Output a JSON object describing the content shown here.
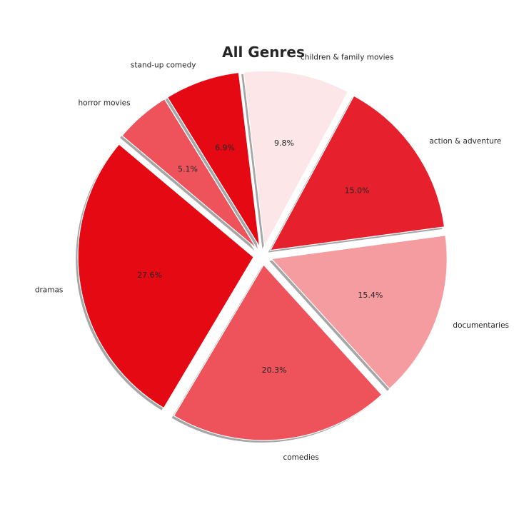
{
  "chart_data": {
    "type": "pie",
    "title": "All Genres",
    "start_angle_deg": 140,
    "direction": "counterclockwise",
    "shadow": true,
    "exploded": true,
    "slices": [
      {
        "label": "dramas",
        "value": 27.6,
        "pct_label": "27.6%",
        "color": "#E50914"
      },
      {
        "label": "comedies",
        "value": 20.3,
        "pct_label": "20.3%",
        "color": "#EE525B"
      },
      {
        "label": "documentaries",
        "value": 15.4,
        "pct_label": "15.4%",
        "color": "#F59CA1"
      },
      {
        "label": "action & adventure",
        "value": 15.0,
        "pct_label": "15.0%",
        "color": "#E6202C"
      },
      {
        "label": "children & family movies",
        "value": 9.8,
        "pct_label": "9.8%",
        "color": "#FCE6E7"
      },
      {
        "label": "stand-up comedy",
        "value": 6.9,
        "pct_label": "6.9%",
        "color": "#E50914"
      },
      {
        "label": "horror movies",
        "value": 5.1,
        "pct_label": "5.1%",
        "color": "#EE525B"
      }
    ]
  }
}
